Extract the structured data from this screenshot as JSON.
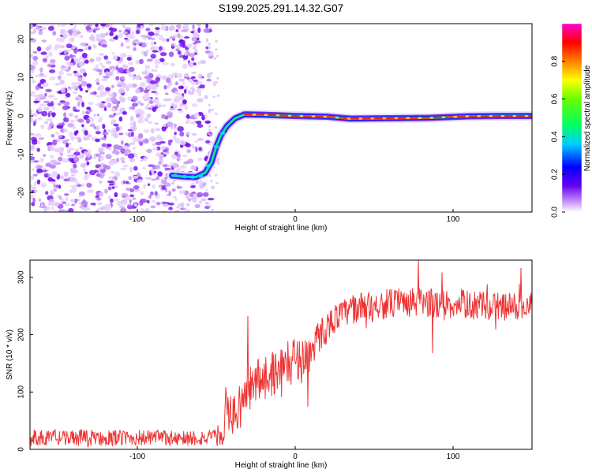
{
  "title": "S199.2025.291.14.32.G07",
  "colors": {
    "snr_line": "#ee3333",
    "axis": "#000000",
    "trace_core": "#e82020"
  },
  "chart_data": [
    {
      "type": "heatmap",
      "title": "S199.2025.291.14.32.G07",
      "xlabel": "Height of straight line (km)",
      "ylabel": "Frequency (Hz)",
      "xlim": [
        -168,
        150
      ],
      "ylim": [
        -25,
        24
      ],
      "xticks": [
        -100,
        0,
        100
      ],
      "yticks": [
        -20,
        -10,
        0,
        10,
        20
      ],
      "colorbar": {
        "label": "Normalized spectral amplitude",
        "range": [
          0,
          1
        ],
        "ticks": [
          "0.0",
          "0.2",
          "0.4",
          "0.6",
          "0.8"
        ]
      },
      "noise_region_x": [
        -168,
        -52
      ],
      "trace": [
        {
          "x": -78,
          "f": -15.5
        },
        {
          "x": -70,
          "f": -15.8
        },
        {
          "x": -63,
          "f": -15.9
        },
        {
          "x": -57,
          "f": -14.8
        },
        {
          "x": -53,
          "f": -12.0
        },
        {
          "x": -50,
          "f": -8.0
        },
        {
          "x": -47,
          "f": -5.0
        },
        {
          "x": -43,
          "f": -2.5
        },
        {
          "x": -38,
          "f": -0.6
        },
        {
          "x": -32,
          "f": 0.4
        },
        {
          "x": -20,
          "f": 0.3
        },
        {
          "x": 0,
          "f": 0.0
        },
        {
          "x": 20,
          "f": -0.2
        },
        {
          "x": 35,
          "f": -0.7
        },
        {
          "x": 60,
          "f": -0.6
        },
        {
          "x": 85,
          "f": -0.5
        },
        {
          "x": 110,
          "f": -0.1
        },
        {
          "x": 130,
          "f": 0.0
        },
        {
          "x": 150,
          "f": 0.0
        }
      ]
    },
    {
      "type": "line",
      "xlabel": "Height of straight line (km)",
      "ylabel": "SNR (10 * v/v)",
      "xlim": [
        -168,
        150
      ],
      "ylim": [
        0,
        330
      ],
      "xticks": [
        -100,
        0,
        100
      ],
      "yticks": [
        0,
        100,
        200,
        300
      ],
      "series": [
        {
          "name": "SNR",
          "envelope_x": [
            -168,
            -45,
            -44,
            -42,
            -38,
            -32,
            -28,
            -22,
            -15,
            -10,
            -5,
            0,
            5,
            10,
            15,
            20,
            25,
            30,
            40,
            60,
            80,
            100,
            120,
            150
          ],
          "envelope_y": [
            20,
            20,
            80,
            60,
            60,
            90,
            110,
            125,
            132,
            142,
            148,
            158,
            162,
            168,
            198,
            212,
            228,
            236,
            248,
            254,
            256,
            254,
            250,
            248
          ],
          "noise_amplitude": [
            14,
            14,
            30,
            30,
            40,
            40,
            40,
            40,
            40,
            40,
            40,
            40,
            35,
            32,
            30,
            28,
            25,
            25,
            25,
            26,
            26,
            25,
            25,
            25
          ],
          "spikes": [
            {
              "x": -44,
              "y": 108
            },
            {
              "x": -30,
              "y": 232
            },
            {
              "x": 8,
              "y": 75
            },
            {
              "x": 78,
              "y": 330
            },
            {
              "x": 87,
              "y": 168
            },
            {
              "x": 93,
              "y": 308
            },
            {
              "x": 143,
              "y": 316
            }
          ]
        }
      ]
    }
  ]
}
